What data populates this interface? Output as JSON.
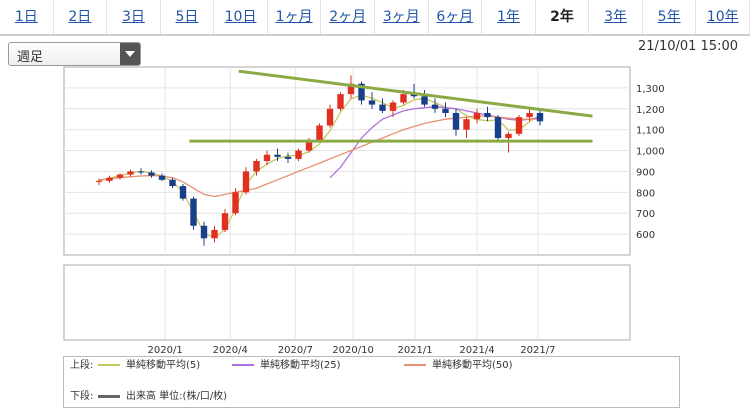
{
  "tabs": [
    {
      "label": "1日",
      "active": false
    },
    {
      "label": "2日",
      "active": false
    },
    {
      "label": "3日",
      "active": false
    },
    {
      "label": "5日",
      "active": false
    },
    {
      "label": "10日",
      "active": false
    },
    {
      "label": "1ヶ月",
      "active": false
    },
    {
      "label": "2ヶ月",
      "active": false
    },
    {
      "label": "3ヶ月",
      "active": false
    },
    {
      "label": "6ヶ月",
      "active": false
    },
    {
      "label": "1年",
      "active": false
    },
    {
      "label": "2年",
      "active": true
    },
    {
      "label": "3年",
      "active": false
    },
    {
      "label": "5年",
      "active": false
    },
    {
      "label": "10年",
      "active": false
    }
  ],
  "period_select": {
    "value": "週足"
  },
  "timestamp": "21/10/01 15:00",
  "legend": {
    "upper_label": "上段:",
    "lower_label": "下段:",
    "ma5": "単純移動平均(5)",
    "ma25": "単純移動平均(25)",
    "ma50": "単純移動平均(50)",
    "volume": "出来高 単位:(株/口/枚)"
  },
  "colors": {
    "up": "#e03020",
    "down": "#1a3f8a",
    "ma5": "#c8c860",
    "ma25": "#b070e0",
    "ma50": "#e89070",
    "trendline": "#8aaa44",
    "volume": "#666666"
  },
  "chart_data": {
    "type": "candlestick",
    "x_tick_labels": [
      "2020/1",
      "2020/4",
      "2020/7",
      "2020/10",
      "2021/1",
      "2021/4",
      "2021/7"
    ],
    "y_tick_labels": [
      "600",
      "700",
      "800",
      "900",
      "1,000",
      "1,100",
      "1,200",
      "1,300"
    ],
    "ylim": [
      500,
      1400
    ],
    "series": [
      {
        "name": "単純移動平均(5)",
        "values": [
          855,
          868,
          880,
          893,
          900,
          893,
          877,
          852,
          800,
          705,
          605,
          582,
          622,
          720,
          838,
          900,
          935,
          962,
          975,
          977,
          994,
          1032,
          1095,
          1184,
          1248,
          1265,
          1250,
          1230,
          1202,
          1216,
          1243,
          1250,
          1230,
          1207,
          1200,
          1167,
          1148,
          1143,
          1147,
          1098,
          1100,
          1138,
          1168
        ]
      },
      {
        "name": "単純移動平均(25)",
        "values": [
          null,
          null,
          null,
          null,
          null,
          null,
          null,
          null,
          null,
          null,
          null,
          null,
          null,
          null,
          null,
          null,
          null,
          null,
          null,
          null,
          null,
          null,
          870,
          920,
          990,
          1060,
          1110,
          1150,
          1170,
          1190,
          1200,
          1205,
          1210,
          1205,
          1200,
          1190,
          1180,
          1170,
          1160,
          1150,
          1145,
          1150,
          1160
        ]
      },
      {
        "name": "単純移動平均(50)",
        "values": [
          860,
          865,
          870,
          875,
          878,
          880,
          878,
          870,
          850,
          820,
          790,
          780,
          790,
          800,
          810,
          820,
          840,
          860,
          880,
          900,
          920,
          940,
          960,
          980,
          1000,
          1020,
          1040,
          1060,
          1080,
          1100,
          1115,
          1130,
          1140,
          1150,
          1155,
          1160,
          1165,
          1165,
          1160,
          1155,
          1150,
          1150,
          1152
        ]
      },
      {
        "name": "candles",
        "values": [
          {
            "o": 850,
            "h": 865,
            "l": 835,
            "c": 855
          },
          {
            "o": 855,
            "h": 880,
            "l": 845,
            "c": 870
          },
          {
            "o": 870,
            "h": 890,
            "l": 860,
            "c": 885
          },
          {
            "o": 885,
            "h": 910,
            "l": 875,
            "c": 900
          },
          {
            "o": 900,
            "h": 915,
            "l": 885,
            "c": 895
          },
          {
            "o": 895,
            "h": 905,
            "l": 870,
            "c": 880
          },
          {
            "o": 880,
            "h": 890,
            "l": 855,
            "c": 860
          },
          {
            "o": 860,
            "h": 870,
            "l": 820,
            "c": 830
          },
          {
            "o": 830,
            "h": 840,
            "l": 760,
            "c": 770
          },
          {
            "o": 770,
            "h": 780,
            "l": 620,
            "c": 640
          },
          {
            "o": 640,
            "h": 660,
            "l": 545,
            "c": 580
          },
          {
            "o": 580,
            "h": 640,
            "l": 560,
            "c": 620
          },
          {
            "o": 620,
            "h": 720,
            "l": 610,
            "c": 700
          },
          {
            "o": 700,
            "h": 820,
            "l": 690,
            "c": 800
          },
          {
            "o": 800,
            "h": 920,
            "l": 790,
            "c": 900
          },
          {
            "o": 900,
            "h": 960,
            "l": 880,
            "c": 950
          },
          {
            "o": 950,
            "h": 1000,
            "l": 930,
            "c": 980
          },
          {
            "o": 980,
            "h": 1010,
            "l": 950,
            "c": 970
          },
          {
            "o": 970,
            "h": 990,
            "l": 940,
            "c": 960
          },
          {
            "o": 960,
            "h": 1010,
            "l": 950,
            "c": 1000
          },
          {
            "o": 1000,
            "h": 1060,
            "l": 990,
            "c": 1050
          },
          {
            "o": 1050,
            "h": 1130,
            "l": 1040,
            "c": 1120
          },
          {
            "o": 1120,
            "h": 1220,
            "l": 1110,
            "c": 1200
          },
          {
            "o": 1200,
            "h": 1280,
            "l": 1190,
            "c": 1270
          },
          {
            "o": 1270,
            "h": 1360,
            "l": 1250,
            "c": 1320
          },
          {
            "o": 1320,
            "h": 1330,
            "l": 1220,
            "c": 1240
          },
          {
            "o": 1240,
            "h": 1280,
            "l": 1200,
            "c": 1220
          },
          {
            "o": 1220,
            "h": 1250,
            "l": 1180,
            "c": 1190
          },
          {
            "o": 1190,
            "h": 1240,
            "l": 1160,
            "c": 1230
          },
          {
            "o": 1230,
            "h": 1290,
            "l": 1220,
            "c": 1270
          },
          {
            "o": 1270,
            "h": 1320,
            "l": 1250,
            "c": 1260
          },
          {
            "o": 1260,
            "h": 1290,
            "l": 1210,
            "c": 1220
          },
          {
            "o": 1220,
            "h": 1250,
            "l": 1180,
            "c": 1200
          },
          {
            "o": 1200,
            "h": 1230,
            "l": 1160,
            "c": 1180
          },
          {
            "o": 1180,
            "h": 1200,
            "l": 1070,
            "c": 1100
          },
          {
            "o": 1100,
            "h": 1160,
            "l": 1060,
            "c": 1150
          },
          {
            "o": 1150,
            "h": 1200,
            "l": 1130,
            "c": 1180
          },
          {
            "o": 1180,
            "h": 1210,
            "l": 1140,
            "c": 1160
          },
          {
            "o": 1160,
            "h": 1170,
            "l": 1050,
            "c": 1060
          },
          {
            "o": 1060,
            "h": 1090,
            "l": 990,
            "c": 1080
          },
          {
            "o": 1080,
            "h": 1170,
            "l": 1070,
            "c": 1160
          },
          {
            "o": 1160,
            "h": 1210,
            "l": 1140,
            "c": 1180
          },
          {
            "o": 1180,
            "h": 1200,
            "l": 1120,
            "c": 1140
          }
        ]
      }
    ],
    "annotations": [
      {
        "type": "trendline",
        "from": {
          "i": 13.3,
          "v": 1380
        },
        "to": {
          "i": 47,
          "v": 1165
        }
      },
      {
        "type": "horizontal",
        "value": 1045,
        "from_i": 8.6,
        "to_i": 47
      }
    ]
  }
}
